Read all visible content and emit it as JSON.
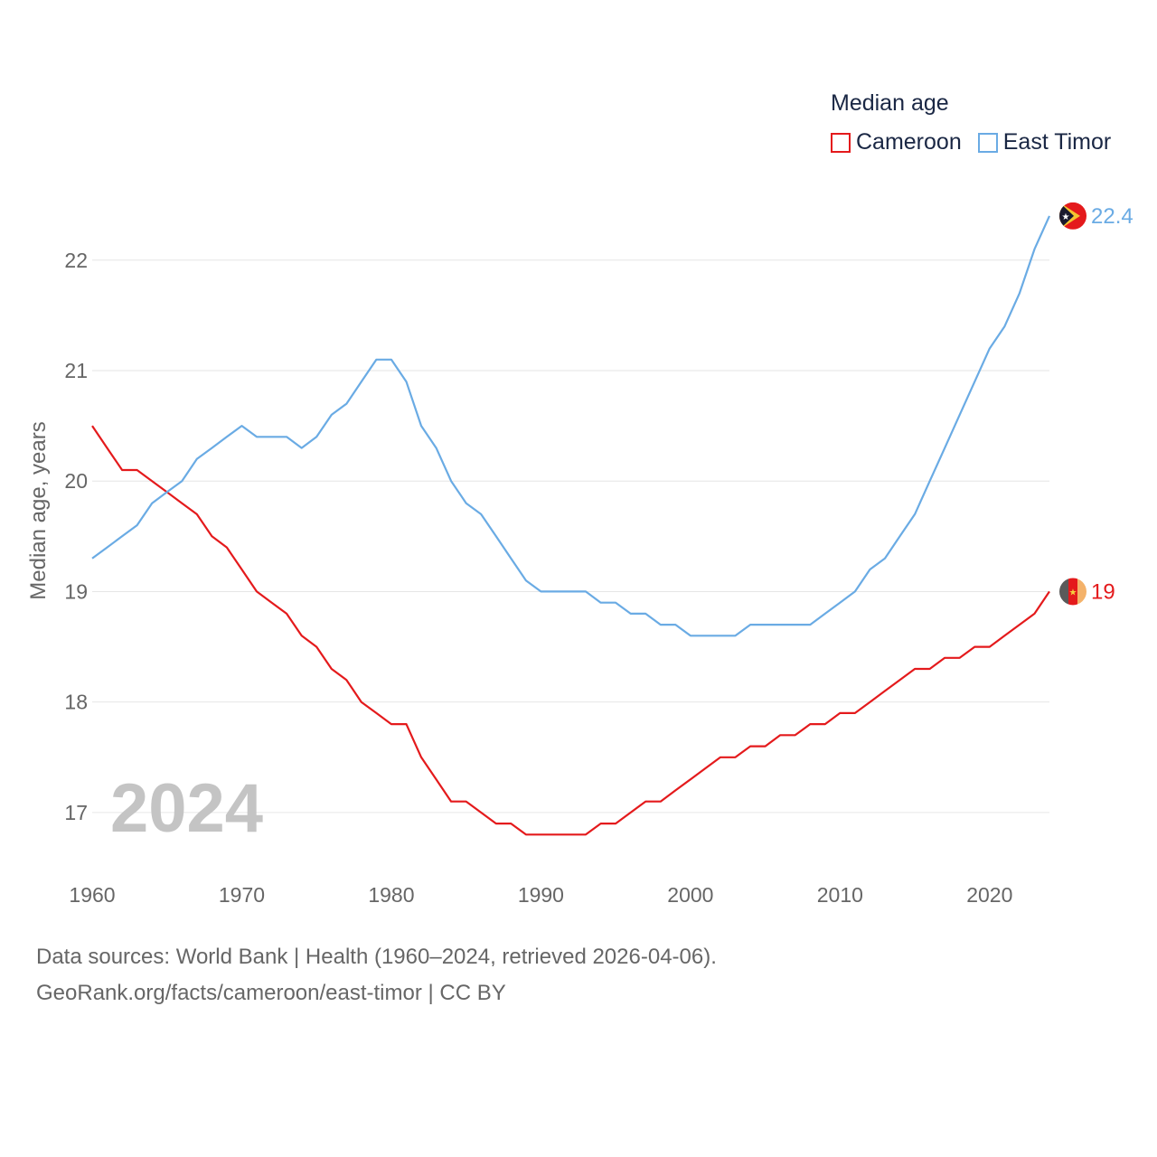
{
  "legend": {
    "title": "Median age",
    "items": [
      {
        "label": "Cameroon",
        "color": "#e41a1c"
      },
      {
        "label": "East Timor",
        "color": "#6aabe4"
      }
    ]
  },
  "footer": {
    "line1": "Data sources: World Bank | Health (1960–2024, retrieved 2026-04-06).",
    "line2": "GeoRank.org/facts/cameroon/east-timor | CC BY"
  },
  "chart_data": {
    "type": "line",
    "title": "Median age",
    "xlabel": "",
    "ylabel": "Median age, years",
    "ylim": [
      16.5,
      22.8
    ],
    "xlim": [
      1960,
      2024
    ],
    "x_ticks": [
      1960,
      1970,
      1980,
      1990,
      2000,
      2010,
      2020
    ],
    "y_ticks": [
      17,
      18,
      19,
      20,
      21,
      22
    ],
    "grid": true,
    "year_watermark": "2024",
    "x": [
      1960,
      1961,
      1962,
      1963,
      1964,
      1965,
      1966,
      1967,
      1968,
      1969,
      1970,
      1971,
      1972,
      1973,
      1974,
      1975,
      1976,
      1977,
      1978,
      1979,
      1980,
      1981,
      1982,
      1983,
      1984,
      1985,
      1986,
      1987,
      1988,
      1989,
      1990,
      1991,
      1992,
      1993,
      1994,
      1995,
      1996,
      1997,
      1998,
      1999,
      2000,
      2001,
      2002,
      2003,
      2004,
      2005,
      2006,
      2007,
      2008,
      2009,
      2010,
      2011,
      2012,
      2013,
      2014,
      2015,
      2016,
      2017,
      2018,
      2019,
      2020,
      2021,
      2022,
      2023,
      2024
    ],
    "series": [
      {
        "name": "Cameroon",
        "color": "#e41a1c",
        "end_label": "19",
        "flag": "cameroon-flag-icon",
        "values": [
          20.5,
          20.3,
          20.1,
          20.1,
          20.0,
          19.9,
          19.8,
          19.7,
          19.5,
          19.4,
          19.2,
          19.0,
          18.9,
          18.8,
          18.6,
          18.5,
          18.3,
          18.2,
          18.0,
          17.9,
          17.8,
          17.8,
          17.5,
          17.3,
          17.1,
          17.1,
          17.0,
          16.9,
          16.9,
          16.8,
          16.8,
          16.8,
          16.8,
          16.8,
          16.9,
          16.9,
          17.0,
          17.1,
          17.1,
          17.2,
          17.3,
          17.4,
          17.5,
          17.5,
          17.6,
          17.6,
          17.7,
          17.7,
          17.8,
          17.8,
          17.9,
          17.9,
          18.0,
          18.1,
          18.2,
          18.3,
          18.3,
          18.4,
          18.4,
          18.5,
          18.5,
          18.6,
          18.7,
          18.8,
          19.0
        ]
      },
      {
        "name": "East Timor",
        "color": "#6aabe4",
        "end_label": "22.4",
        "flag": "east-timor-flag-icon",
        "values": [
          19.3,
          19.4,
          19.5,
          19.6,
          19.8,
          19.9,
          20.0,
          20.2,
          20.3,
          20.4,
          20.5,
          20.4,
          20.4,
          20.4,
          20.3,
          20.4,
          20.6,
          20.7,
          20.9,
          21.1,
          21.1,
          20.9,
          20.5,
          20.3,
          20.0,
          19.8,
          19.7,
          19.5,
          19.3,
          19.1,
          19.0,
          19.0,
          19.0,
          19.0,
          18.9,
          18.9,
          18.8,
          18.8,
          18.7,
          18.7,
          18.6,
          18.6,
          18.6,
          18.6,
          18.7,
          18.7,
          18.7,
          18.7,
          18.7,
          18.8,
          18.9,
          19.0,
          19.2,
          19.3,
          19.5,
          19.7,
          20.0,
          20.3,
          20.6,
          20.9,
          21.2,
          21.4,
          21.7,
          22.1,
          22.4
        ]
      }
    ]
  }
}
